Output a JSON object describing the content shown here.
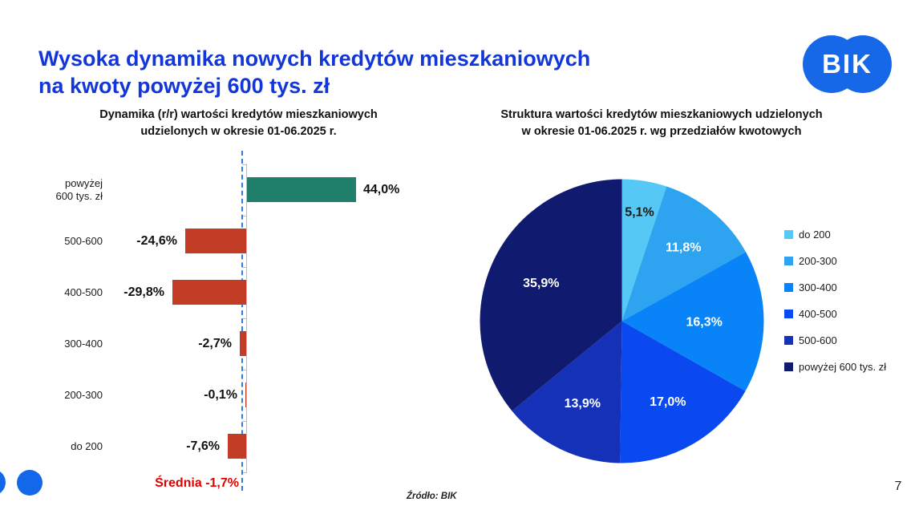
{
  "slide": {
    "title": "Wysoka dynamika nowych kredytów mieszkaniowych\nna kwoty powyżej 600 tys. zł",
    "logo_text": "BIK",
    "source_note": "Źródło: BIK",
    "page_number": "7"
  },
  "theme": {
    "title_color": "#1336d9",
    "logo_color": "#1668e8",
    "accent_circle_color": "#1268e8",
    "axis_color": "#bcbcbc"
  },
  "chart_data": [
    {
      "type": "bar",
      "orientation": "horizontal",
      "title": "Dynamika (r/r) wartości kredytów mieszkaniowych\nudzielonych w okresie 01-06.2025 r.",
      "categories": [
        "powyżej\n600 tys. zł",
        "500-600",
        "400-500",
        "300-400",
        "200-300",
        "do 200"
      ],
      "values": [
        44.0,
        -24.6,
        -29.8,
        -2.7,
        -0.1,
        -7.6
      ],
      "value_labels": [
        "44,0%",
        "-24,6%",
        "-29,8%",
        "-2,7%",
        "-0,1%",
        "-7,6%"
      ],
      "unit": "%",
      "axis_range": [
        -45,
        50
      ],
      "grid": false,
      "average_value": -1.7,
      "average_label": "Średnia -1,7%",
      "positive_color": "#1f7f6b",
      "negative_color": "#c33c26",
      "average_line_color": "#2f7de0",
      "average_label_color": "#e00000"
    },
    {
      "type": "pie",
      "title": "Struktura wartości kredytów mieszkaniowych udzielonych\nw okresie 01-06.2025 r. wg przedziałów kwotowych",
      "categories": [
        "do 200",
        "200-300",
        "300-400",
        "400-500",
        "500-600",
        "powyżej 600 tys. zł"
      ],
      "values": [
        5.1,
        11.8,
        16.3,
        17.0,
        13.9,
        35.9
      ],
      "value_labels": [
        "5,1%",
        "11,8%",
        "16,3%",
        "17,0%",
        "13,9%",
        "35,9%"
      ],
      "colors": [
        "#55c8f5",
        "#2ea3ef",
        "#0884f8",
        "#0b49f0",
        "#1531b8",
        "#101a6e"
      ],
      "start_angle_deg": 0,
      "direction": "clockwise",
      "legend_position": "right"
    }
  ]
}
